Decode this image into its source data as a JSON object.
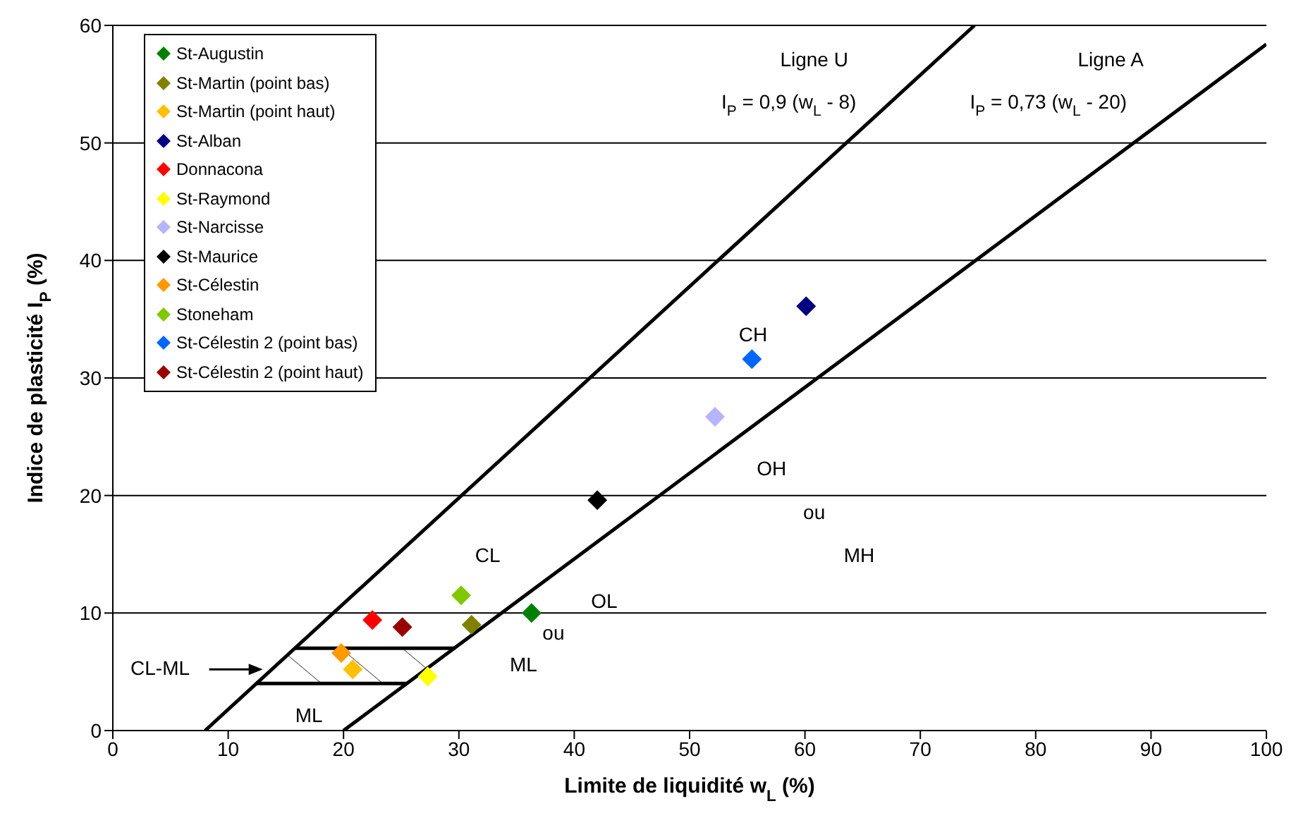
{
  "chart_data": {
    "type": "scatter",
    "xlabel": "Limite de liquidité w$_{L}$ (%)",
    "ylabel": "Indice de plasticité I$_{P}$ (%)",
    "xlim": [
      0,
      100
    ],
    "xticks": [
      0,
      10,
      20,
      30,
      40,
      50,
      60,
      70,
      80,
      90,
      100
    ],
    "ylim": [
      0,
      60
    ],
    "yticks": [
      0,
      10,
      20,
      30,
      40,
      50,
      60
    ],
    "grid": "y",
    "legend": "top left",
    "marker": "diamond",
    "series": [
      {
        "name": "St-Augustin",
        "color": "#008000",
        "x": [
          36.3
        ],
        "values": [
          10.0
        ]
      },
      {
        "name": "St-Martin (point bas)",
        "color": "#808000",
        "x": [
          31.1
        ],
        "values": [
          9.0
        ]
      },
      {
        "name": "St-Martin (point haut)",
        "color": "#ffc000",
        "x": [
          20.8
        ],
        "values": [
          5.2
        ]
      },
      {
        "name": "St-Alban",
        "color": "#000080",
        "x": [
          60.1
        ],
        "values": [
          36.1
        ]
      },
      {
        "name": "Donnacona",
        "color": "#ff0000",
        "x": [
          22.5
        ],
        "values": [
          9.4
        ]
      },
      {
        "name": "St-Raymond",
        "color": "#ffff00",
        "x": [
          27.3
        ],
        "values": [
          4.6
        ]
      },
      {
        "name": "St-Narcisse",
        "color": "#b4b4ff",
        "x": [
          52.2
        ],
        "values": [
          26.7
        ]
      },
      {
        "name": "St-Maurice",
        "color": "#000000",
        "x": [
          42.0
        ],
        "values": [
          19.6
        ]
      },
      {
        "name": "St-Célestin",
        "color": "#ff9900",
        "x": [
          19.8
        ],
        "values": [
          6.6
        ]
      },
      {
        "name": "Stoneham",
        "color": "#80c800",
        "x": [
          30.2
        ],
        "values": [
          11.5
        ]
      },
      {
        "name": "St-Célestin 2 (point bas)",
        "color": "#0066ff",
        "x": [
          55.4
        ],
        "values": [
          31.6
        ]
      },
      {
        "name": "St-Célestin 2 (point haut)",
        "color": "#990000",
        "x": [
          25.1
        ],
        "values": [
          8.8
        ]
      },
      {
        "type": "line",
        "color": "#000000",
        "marker": "none",
        "x": [
          8,
          74.7
        ],
        "values": [
          0,
          60
        ]
      },
      {
        "type": "line",
        "color": "#000000",
        "marker": "none",
        "x": [
          20,
          100
        ],
        "values": [
          0,
          58.4
        ]
      },
      {
        "type": "line",
        "color": "#000000",
        "marker": "none",
        "x": [
          12.4,
          25.5
        ],
        "values": [
          4,
          4
        ]
      },
      {
        "type": "line",
        "color": "#000000",
        "marker": "none",
        "x": [
          15.8,
          29.6
        ],
        "values": [
          7,
          7
        ]
      }
    ],
    "annotations": [
      "Ligne U",
      "I$_{P}$ = 0,9 (w$_{L}$ - 8)",
      "Ligne A",
      "I$_{P}$ = 0,73 (w$_{L}$ - 20)",
      "CH",
      "OH",
      "ou",
      "MH",
      "CL",
      "OL",
      "ou",
      "ML",
      "ML",
      "CL-ML"
    ]
  }
}
